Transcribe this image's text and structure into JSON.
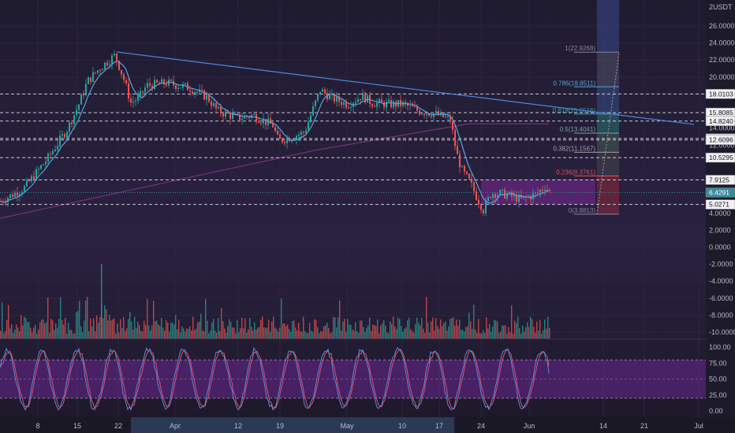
{
  "currency_label": "USDT",
  "price_axis": {
    "labels": [
      "26.0000",
      "24.0000",
      "22.0000",
      "20.0000",
      "18.0000",
      "14.0000",
      "12.0000",
      "8.0000",
      "4.0000",
      "2.0000",
      "0.0000",
      "-2.0000",
      "-4.0000",
      "-6.0000",
      "-8.0000",
      "-10.0000"
    ],
    "values": [
      26,
      24,
      22,
      20,
      18,
      14,
      12,
      8,
      4,
      2,
      0,
      -2,
      -4,
      -6,
      -8,
      -10
    ],
    "top_label": "2"
  },
  "price_tags": [
    {
      "label": "18.0103",
      "value": 18.0103,
      "style": "outline"
    },
    {
      "label": "15.8085",
      "value": 15.8085,
      "style": "outline"
    },
    {
      "label": "14.8240",
      "value": 14.824,
      "style": "outline"
    },
    {
      "label": "12.7753",
      "value": 12.7753,
      "style": "outline"
    },
    {
      "label": "12.6096",
      "value": 12.6096,
      "style": "outline"
    },
    {
      "label": "10.5295",
      "value": 10.5295,
      "style": "outline"
    },
    {
      "label": "7.9125",
      "value": 7.9125,
      "style": "outline"
    },
    {
      "label": "6.4291",
      "value": 6.4291,
      "style": "current"
    },
    {
      "label": "5.0271",
      "value": 5.0271,
      "style": "outline"
    }
  ],
  "fib_levels": [
    {
      "label": "1(22.9268)",
      "value": 22.9268,
      "color": "#8a8299"
    },
    {
      "label": "0.786(18.8511)",
      "value": 18.8511,
      "color": "#5aa0d8"
    },
    {
      "label": "0.618(15.6516)",
      "value": 15.6516,
      "color": "#3aa0a0"
    },
    {
      "label": "0.5(13.4041)",
      "value": 13.4041,
      "color": "#7aa090"
    },
    {
      "label": "0.382(11.1567)",
      "value": 11.1567,
      "color": "#a0a0a0"
    },
    {
      "label": "0.236(8.3761)",
      "value": 8.3761,
      "color": "#e05050"
    },
    {
      "label": "0(3.8813)",
      "value": 3.8813,
      "color": "#8a8299"
    }
  ],
  "dashed_levels": [
    18.0103,
    15.8085,
    14.824,
    12.7753,
    12.6096,
    10.5295,
    7.9125,
    5.0271
  ],
  "stoch_axis": {
    "labels": [
      "100.00",
      "75.00",
      "50.00",
      "25.00",
      "0.00"
    ],
    "values": [
      100,
      75,
      50,
      25,
      0
    ]
  },
  "time_axis": {
    "labels": [
      "8",
      "15",
      "22",
      "Apr",
      "12",
      "19",
      "May",
      "10",
      "17",
      "24",
      "Jun",
      "14",
      "21",
      "Jul"
    ]
  },
  "colors": {
    "background": "#1e1a2e",
    "up_candle": "#26a69a",
    "down_candle": "#ef5350",
    "trendline": "#4a7fd0",
    "ma_fast": "#5aa0e0",
    "ma_slow": "#8a3a8a",
    "stoch_k": "#5a8ad8",
    "stoch_d": "#e05070",
    "current_price_tag": "#3a8a9a"
  }
}
